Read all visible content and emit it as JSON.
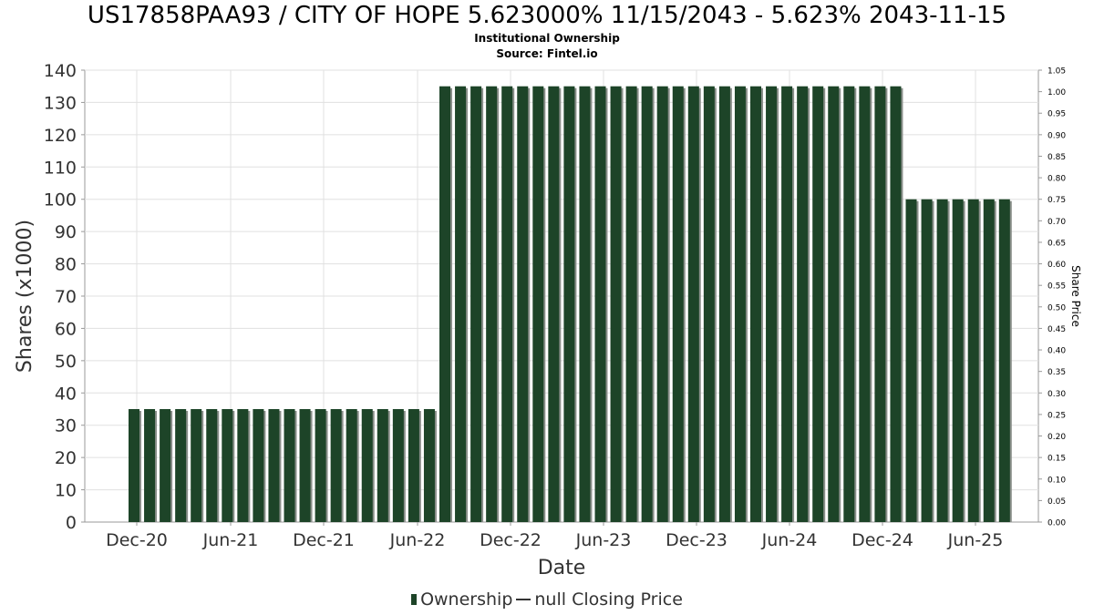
{
  "title": "US17858PAA93 / CITY OF HOPE 5.623000% 11/15/2043 - 5.623% 2043-11-15",
  "subtitle": "Institutional Ownership",
  "source": "Source: Fintel.io",
  "legend": {
    "ownership_label": "Ownership",
    "price_label": "null Closing Price"
  },
  "colors": {
    "bar": "#1d4428",
    "bar_shadow": "#8a8f8a",
    "grid": "#e0e0e0",
    "axis_text": "#333333"
  },
  "chart_data": {
    "type": "bar",
    "xlabel": "Date",
    "ylabel": "Shares (x1000)",
    "y2label": "Share Price",
    "ylim": [
      0,
      140
    ],
    "y2lim": [
      0,
      1.05
    ],
    "yticks": [
      "0",
      "10",
      "20",
      "30",
      "40",
      "50",
      "60",
      "70",
      "80",
      "90",
      "100",
      "110",
      "120",
      "130",
      "140"
    ],
    "y2ticks": [
      "0.00",
      "0.05",
      "0.10",
      "0.15",
      "0.20",
      "0.25",
      "0.30",
      "0.35",
      "0.40",
      "0.45",
      "0.50",
      "0.55",
      "0.60",
      "0.65",
      "0.70",
      "0.75",
      "0.80",
      "0.85",
      "0.90",
      "0.95",
      "1.00",
      "1.05"
    ],
    "xticks": [
      "Dec-20",
      "Jun-21",
      "Dec-21",
      "Jun-22",
      "Dec-22",
      "Jun-23",
      "Dec-23",
      "Jun-24",
      "Dec-24",
      "Jun-25"
    ],
    "grid": true,
    "legend_position": "bottom",
    "series": [
      {
        "name": "Ownership",
        "values": [
          35,
          35,
          35,
          35,
          35,
          35,
          35,
          35,
          35,
          35,
          35,
          35,
          35,
          35,
          35,
          35,
          35,
          35,
          35,
          35,
          135,
          135,
          135,
          135,
          135,
          135,
          135,
          135,
          135,
          135,
          135,
          135,
          135,
          135,
          135,
          135,
          135,
          135,
          135,
          135,
          135,
          135,
          135,
          135,
          135,
          135,
          135,
          135,
          135,
          135,
          100,
          100,
          100,
          100,
          100,
          100,
          100
        ]
      }
    ]
  }
}
